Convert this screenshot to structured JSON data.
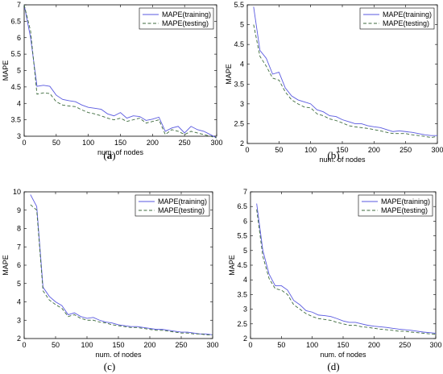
{
  "chart_data": [
    {
      "type": "line",
      "caption_prefix": "(",
      "caption_letter": "a",
      "caption_suffix": ")",
      "caption_bold": true,
      "xlabel": "num. of nodes",
      "ylabel": "MAPE",
      "xlim": [
        0,
        300
      ],
      "ylim": [
        3,
        7
      ],
      "xticks": [
        "0",
        "50",
        "100",
        "150",
        "200",
        "250",
        "300"
      ],
      "yticks": [
        "3",
        "3.5",
        "4",
        "4.5",
        "5",
        "5.5",
        "6",
        "6.5",
        "7"
      ],
      "legend_position": "top-right",
      "x": [
        0,
        10,
        20,
        30,
        40,
        50,
        60,
        70,
        80,
        90,
        100,
        110,
        120,
        130,
        140,
        150,
        160,
        170,
        180,
        190,
        200,
        210,
        220,
        230,
        240,
        250,
        260,
        270,
        280,
        290,
        300
      ],
      "series": [
        {
          "name": "MAPE(training)",
          "style": "solid",
          "color": "#5a5ae0",
          "values": [
            7.0,
            6.0,
            4.52,
            4.55,
            4.52,
            4.25,
            4.12,
            4.08,
            4.05,
            3.95,
            3.88,
            3.85,
            3.82,
            3.68,
            3.62,
            3.72,
            3.55,
            3.62,
            3.6,
            3.48,
            3.52,
            3.58,
            3.15,
            3.25,
            3.3,
            3.1,
            3.3,
            3.2,
            3.15,
            3.05,
            2.95
          ]
        },
        {
          "name": "MAPE(testing)",
          "style": "dashed",
          "color": "#3c6a3c",
          "values": [
            7.0,
            6.2,
            4.28,
            4.32,
            4.3,
            4.05,
            3.95,
            3.92,
            3.9,
            3.8,
            3.72,
            3.68,
            3.62,
            3.55,
            3.5,
            3.55,
            3.45,
            3.5,
            3.55,
            3.4,
            3.45,
            3.5,
            3.05,
            3.2,
            3.15,
            3.05,
            3.15,
            3.1,
            3.05,
            3.0,
            2.95
          ]
        }
      ]
    },
    {
      "type": "line",
      "caption_prefix": "(",
      "caption_letter": "b",
      "caption_suffix": ")",
      "caption_bold": false,
      "xlabel": "num. of nodes",
      "ylabel": "MAPE",
      "xlim": [
        0,
        300
      ],
      "ylim": [
        2,
        5.5
      ],
      "xticks": [
        "0",
        "50",
        "100",
        "150",
        "200",
        "250",
        "300"
      ],
      "yticks": [
        "2",
        "2.5",
        "3",
        "3.5",
        "4",
        "4.5",
        "5",
        "5.5"
      ],
      "legend_position": "top-right",
      "x": [
        10,
        20,
        30,
        40,
        50,
        60,
        70,
        80,
        90,
        100,
        110,
        120,
        130,
        140,
        150,
        160,
        170,
        180,
        190,
        200,
        210,
        220,
        230,
        240,
        250,
        260,
        270,
        280,
        290,
        300
      ],
      "series": [
        {
          "name": "MAPE(training)",
          "style": "solid",
          "color": "#5a5ae0",
          "values": [
            5.45,
            4.35,
            4.15,
            3.75,
            3.8,
            3.4,
            3.2,
            3.1,
            3.05,
            3.0,
            2.85,
            2.8,
            2.7,
            2.68,
            2.6,
            2.55,
            2.5,
            2.5,
            2.45,
            2.42,
            2.4,
            2.35,
            2.3,
            2.32,
            2.3,
            2.28,
            2.25,
            2.22,
            2.2,
            2.2
          ]
        },
        {
          "name": "MAPE(testing)",
          "style": "dashed",
          "color": "#3c6a3c",
          "values": [
            5.0,
            4.2,
            3.95,
            3.65,
            3.6,
            3.3,
            3.1,
            3.0,
            2.92,
            2.9,
            2.75,
            2.7,
            2.62,
            2.58,
            2.52,
            2.45,
            2.42,
            2.4,
            2.38,
            2.35,
            2.32,
            2.28,
            2.25,
            2.25,
            2.25,
            2.22,
            2.2,
            2.18,
            2.15,
            2.18
          ]
        }
      ]
    },
    {
      "type": "line",
      "caption_prefix": "(",
      "caption_letter": "c",
      "caption_suffix": ")",
      "caption_bold": false,
      "xlabel": "num. of nodes",
      "ylabel": "MAPE",
      "xlim": [
        0,
        300
      ],
      "ylim": [
        2,
        10
      ],
      "xticks": [
        "0",
        "50",
        "100",
        "150",
        "200",
        "250",
        "300"
      ],
      "yticks": [
        "2",
        "3",
        "4",
        "5",
        "6",
        "7",
        "8",
        "9",
        "10"
      ],
      "legend_position": "top-right",
      "x": [
        10,
        20,
        30,
        40,
        50,
        60,
        70,
        80,
        90,
        100,
        110,
        120,
        130,
        140,
        150,
        160,
        170,
        180,
        190,
        200,
        210,
        220,
        230,
        240,
        250,
        260,
        270,
        280,
        290,
        300
      ],
      "series": [
        {
          "name": "MAPE(training)",
          "style": "solid",
          "color": "#5a5ae0",
          "values": [
            9.85,
            9.2,
            4.8,
            4.3,
            4.0,
            3.8,
            3.3,
            3.4,
            3.2,
            3.1,
            3.15,
            3.0,
            2.9,
            2.85,
            2.75,
            2.7,
            2.65,
            2.65,
            2.6,
            2.55,
            2.5,
            2.5,
            2.45,
            2.4,
            2.35,
            2.35,
            2.3,
            2.25,
            2.25,
            2.2
          ]
        },
        {
          "name": "MAPE(testing)",
          "style": "dashed",
          "color": "#3c6a3c",
          "values": [
            9.3,
            9.0,
            4.6,
            4.1,
            3.85,
            3.65,
            3.2,
            3.3,
            3.1,
            3.0,
            3.0,
            2.9,
            2.85,
            2.75,
            2.7,
            2.65,
            2.6,
            2.6,
            2.55,
            2.5,
            2.45,
            2.45,
            2.4,
            2.35,
            2.3,
            2.3,
            2.25,
            2.25,
            2.2,
            2.2
          ]
        }
      ]
    },
    {
      "type": "line",
      "caption_prefix": "(",
      "caption_letter": "d",
      "caption_suffix": ")",
      "caption_bold": false,
      "xlabel": "num. of nodes",
      "ylabel": "MAPE",
      "xlim": [
        0,
        300
      ],
      "ylim": [
        2,
        7
      ],
      "xticks": [
        "0",
        "50",
        "100",
        "150",
        "200",
        "250",
        "300"
      ],
      "yticks": [
        "2",
        "2.5",
        "3",
        "3.5",
        "4",
        "4.5",
        "5",
        "5.5",
        "6",
        "6.5",
        "7"
      ],
      "legend_position": "top-right",
      "x": [
        10,
        20,
        30,
        40,
        50,
        60,
        70,
        80,
        90,
        100,
        110,
        120,
        130,
        140,
        150,
        160,
        170,
        180,
        190,
        200,
        210,
        220,
        230,
        240,
        250,
        260,
        270,
        280,
        290,
        300
      ],
      "series": [
        {
          "name": "MAPE(training)",
          "style": "solid",
          "color": "#5a5ae0",
          "values": [
            6.6,
            5.0,
            4.2,
            3.8,
            3.8,
            3.65,
            3.3,
            3.15,
            2.95,
            2.9,
            2.8,
            2.78,
            2.75,
            2.68,
            2.6,
            2.55,
            2.55,
            2.5,
            2.45,
            2.42,
            2.4,
            2.38,
            2.35,
            2.32,
            2.3,
            2.28,
            2.25,
            2.22,
            2.2,
            2.18
          ]
        },
        {
          "name": "MAPE(testing)",
          "style": "dashed",
          "color": "#3c6a3c",
          "values": [
            6.4,
            4.8,
            4.05,
            3.7,
            3.65,
            3.5,
            3.15,
            3.0,
            2.85,
            2.75,
            2.68,
            2.65,
            2.62,
            2.55,
            2.5,
            2.45,
            2.45,
            2.4,
            2.38,
            2.35,
            2.32,
            2.3,
            2.28,
            2.25,
            2.25,
            2.22,
            2.2,
            2.18,
            2.16,
            2.15
          ]
        }
      ]
    }
  ]
}
